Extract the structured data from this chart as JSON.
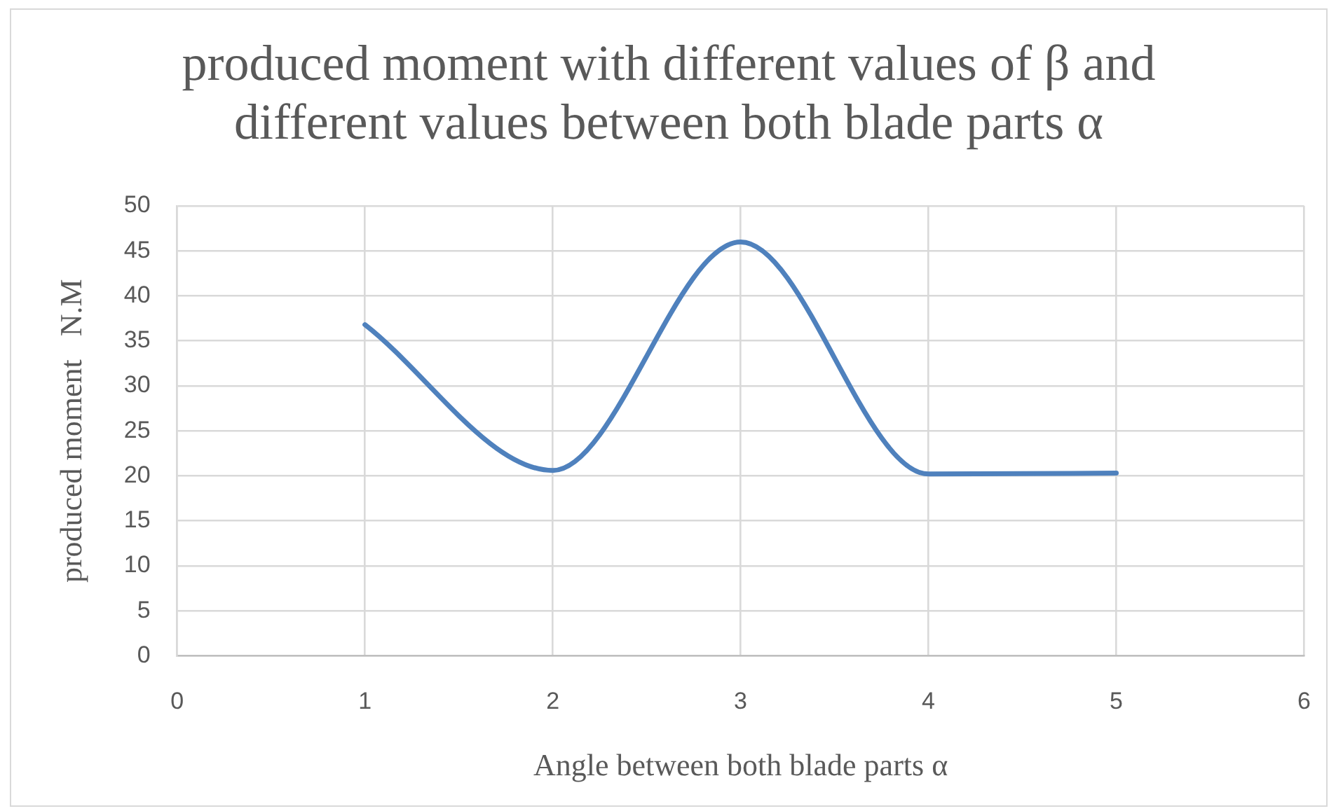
{
  "chart_data": {
    "type": "line",
    "title": "produced moment with different values of β and different values between both blade parts α",
    "xlabel": "Angle between both blade parts α",
    "ylabel": "produced moment   N.M",
    "x": [
      1,
      2,
      3,
      4,
      5
    ],
    "series": [
      {
        "color": "#4f81bd",
        "values": [
          36.8,
          20.6,
          46,
          20.2,
          20.3
        ]
      }
    ],
    "xlim": [
      0,
      6
    ],
    "xticks": [
      0,
      1,
      2,
      3,
      4,
      5,
      6
    ],
    "ylim": [
      0,
      50
    ],
    "yticks": [
      0,
      5,
      10,
      15,
      20,
      25,
      30,
      35,
      40,
      45,
      50
    ],
    "grid": true,
    "legend": false,
    "marker": "none",
    "line_style": "solid"
  }
}
